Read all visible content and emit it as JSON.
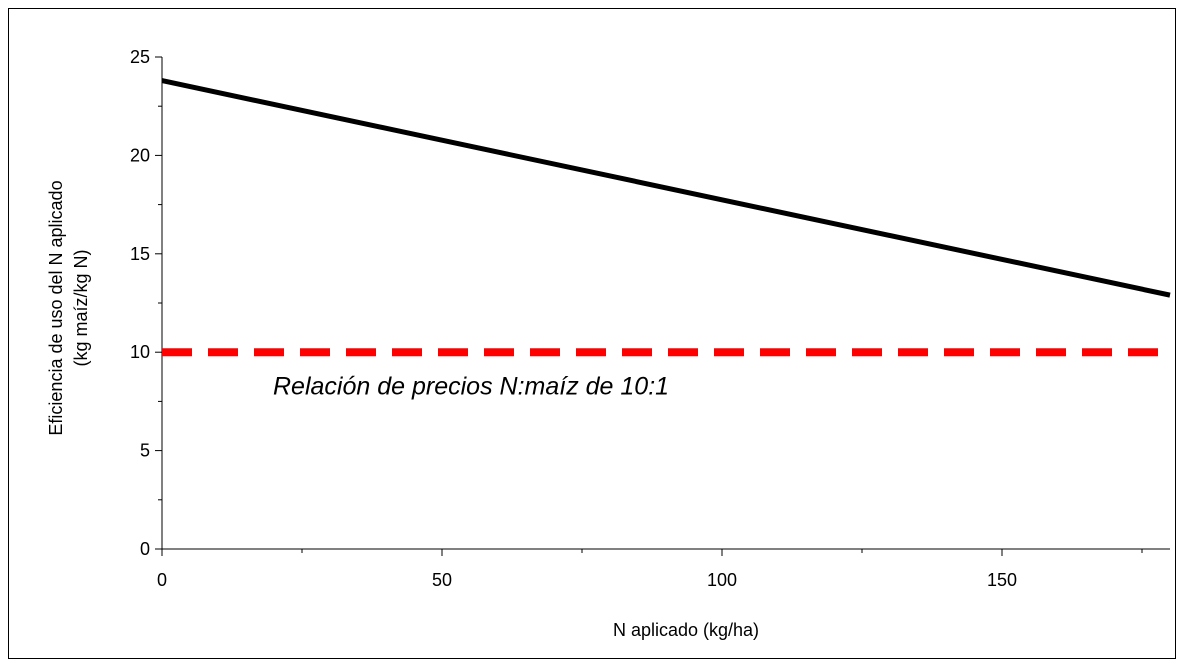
{
  "chart_data": {
    "type": "line",
    "title": "",
    "xlabel": "N aplicado (kg/ha)",
    "ylabel_lines": [
      "Eficiencia de uso del N aplicado",
      "(kg maíz/kg N)"
    ],
    "xlim": [
      0,
      180
    ],
    "ylim": [
      0,
      25
    ],
    "x_ticks": [
      0,
      50,
      100,
      150
    ],
    "x_tick_labels": [
      "0",
      "50",
      "100",
      "150"
    ],
    "x_minor_step": 25,
    "y_ticks": [
      0,
      5,
      10,
      15,
      20,
      25
    ],
    "y_tick_labels": [
      "0",
      "5",
      "10",
      "15",
      "20",
      "25"
    ],
    "y_minor_step": 2.5,
    "grid": false,
    "series": [
      {
        "style": "solid",
        "color": "#000000",
        "x": [
          0,
          180
        ],
        "y": [
          23.8,
          12.9
        ]
      },
      {
        "style": "dashed",
        "color": "#ff0000",
        "x": [
          0,
          180
        ],
        "y": [
          10,
          10
        ]
      }
    ],
    "annotations": [
      {
        "text": "Relación de precios N:maíz de 10:1",
        "x": 20,
        "y": 8.3
      }
    ]
  }
}
